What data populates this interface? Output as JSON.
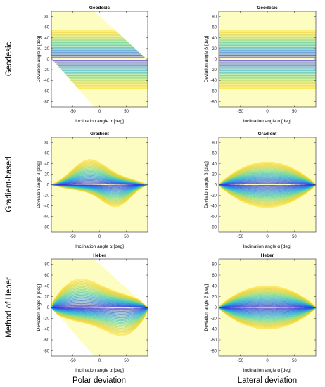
{
  "figure": {
    "row_labels": [
      "Geodesic",
      "Gradient-based",
      "Method of Heber"
    ],
    "column_labels": [
      "Polar deviation",
      "Lateral deviation"
    ]
  },
  "style": {
    "background_fill": "#fdfdc2",
    "line_colors": [
      "#3d1fd6",
      "#2b59e6",
      "#1f86e6",
      "#27b0d3",
      "#49c8a5",
      "#86d577",
      "#c2d34a",
      "#f0cc2a",
      "#f9e43c"
    ],
    "light_fill": "#f3f0d6",
    "axis_color": "#262626"
  },
  "chart_data": [
    {
      "type": "line",
      "panel": "geodesic-polar",
      "title": "Geodesic",
      "xlabel": "Inclination angle α [deg]",
      "ylabel": "Deviation angle β [deg]",
      "xlim": [
        -90,
        90
      ],
      "ylim": [
        -90,
        90
      ],
      "xticks": [
        -50,
        0,
        50
      ],
      "yticks": [
        -80,
        -60,
        -40,
        -20,
        0,
        20,
        40,
        60,
        80
      ],
      "region": "diagonal band from β=90 at α=-10 to β=0 at α=90 (upper bound) and β=0 at α=-90 to β=-90 at α=-10 (lower bound)",
      "curves": "horizontal lines at constant β from -55 to 55",
      "family": "geodesic-polar"
    },
    {
      "type": "line",
      "panel": "geodesic-lateral",
      "title": "Geodesic",
      "xlabel": "Inclination angle α [deg]",
      "ylabel": "Deviation angle β [deg]",
      "xlim": [
        -90,
        90
      ],
      "ylim": [
        -90,
        90
      ],
      "xticks": [
        -50,
        0,
        50
      ],
      "yticks": [
        -80,
        -60,
        -40,
        -20,
        0,
        20,
        40,
        60,
        80
      ],
      "curves": "horizontal lines at constant β from -55 to 55",
      "family": "geodesic-lateral"
    },
    {
      "type": "line",
      "panel": "gradient-polar",
      "title": "Gradient",
      "xlabel": "Inclination angle α [deg]",
      "ylabel": "Deviation angle β [deg]",
      "xlim": [
        -90,
        90
      ],
      "ylim": [
        -90,
        90
      ],
      "xticks": [
        -50,
        0,
        50
      ],
      "yticks": [
        -80,
        -60,
        -40,
        -20,
        0,
        20,
        40,
        60,
        80
      ],
      "curves": "asymmetric lens, peak β≈50 near α=-25, trough β≈-48 near α=40, converging at α=±90",
      "family": "gradient-polar"
    },
    {
      "type": "line",
      "panel": "gradient-lateral",
      "title": "Gradient",
      "xlabel": "Inclination angle α [deg]",
      "ylabel": "Deviation angle β [deg]",
      "xlim": [
        -90,
        90
      ],
      "ylim": [
        -90,
        90
      ],
      "xticks": [
        -50,
        0,
        50
      ],
      "yticks": [
        -80,
        -60,
        -40,
        -20,
        0,
        20,
        40,
        60,
        80
      ],
      "curves": "symmetric lens, max |β|≈43 at α=0, converging at α=±90",
      "family": "gradient-lateral"
    },
    {
      "type": "line",
      "panel": "heber-polar",
      "title": "Heber",
      "xlabel": "Inclination angle α [deg]",
      "ylabel": "Deviation angle β [deg]",
      "xlim": [
        -90,
        90
      ],
      "ylim": [
        -90,
        90
      ],
      "xticks": [
        -50,
        0,
        50
      ],
      "yticks": [
        -80,
        -60,
        -40,
        -20,
        0,
        20,
        40,
        60,
        80
      ],
      "region": "diagonal band from β=90 at α=-10 to β=0 at α=90 (upper bound) and β=0 at α=-90 to β=-90 at α=-10 (lower bound)",
      "curves": "skewed lens, upper edge β≈58 near α=-55, lower edge β≈-60 near α=70, converging at α=±90",
      "family": "heber-polar"
    },
    {
      "type": "line",
      "panel": "heber-lateral",
      "title": "Heber",
      "xlabel": "Inclination angle α [deg]",
      "ylabel": "Deviation angle β [deg]",
      "xlim": [
        -90,
        90
      ],
      "ylim": [
        -90,
        90
      ],
      "xticks": [
        -50,
        0,
        50
      ],
      "yticks": [
        -80,
        -60,
        -40,
        -20,
        0,
        20,
        40,
        60,
        80
      ],
      "curves": "symmetric lens, max |β|≈40 at α=0, converging at α=±90",
      "family": "heber-lateral"
    }
  ]
}
